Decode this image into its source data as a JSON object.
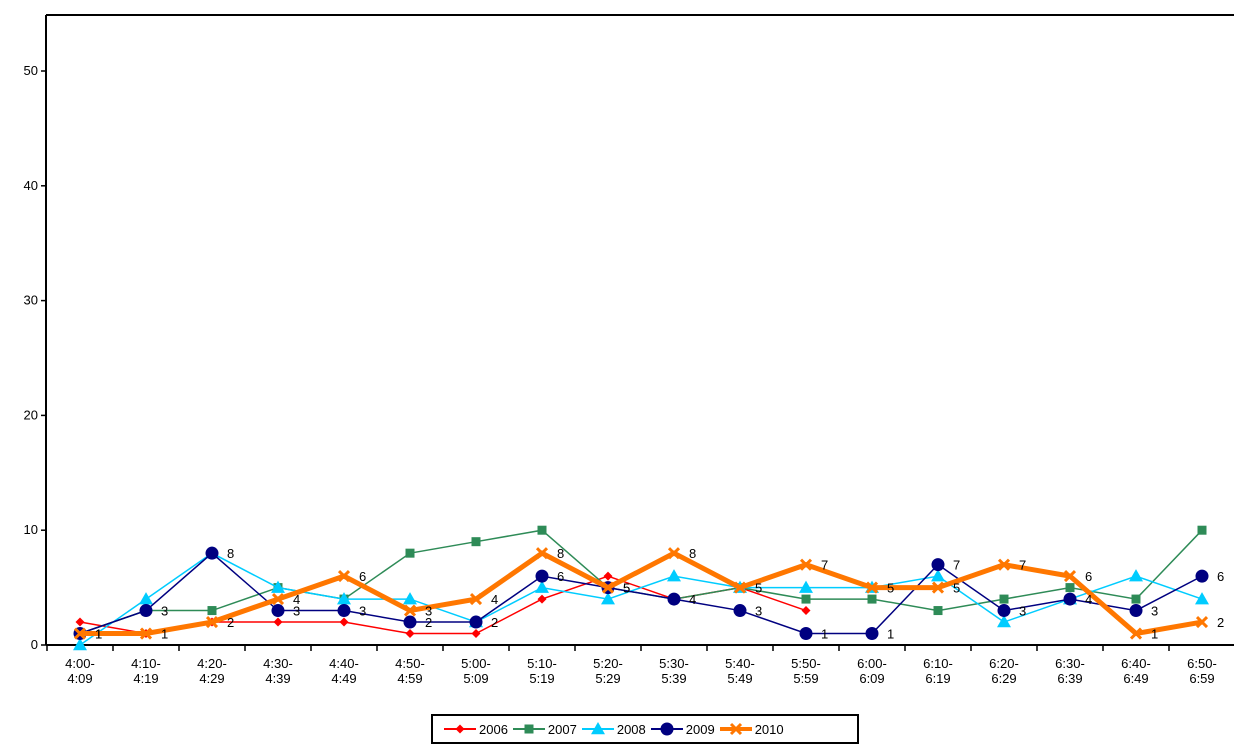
{
  "chart_data": {
    "type": "line",
    "title": "",
    "xlabel": "",
    "ylabel": "",
    "ylim": [
      0,
      55
    ],
    "yticks": [
      0,
      10,
      20,
      30,
      40,
      50
    ],
    "grid": false,
    "legend_position": "bottom-center",
    "categories": [
      [
        "4:00-",
        "4:09"
      ],
      [
        "4:10-",
        "4:19"
      ],
      [
        "4:20-",
        "4:29"
      ],
      [
        "4:30-",
        "4:39"
      ],
      [
        "4:40-",
        "4:49"
      ],
      [
        "4:50-",
        "4:59"
      ],
      [
        "5:00-",
        "5:09"
      ],
      [
        "5:10-",
        "5:19"
      ],
      [
        "5:20-",
        "5:29"
      ],
      [
        "5:30-",
        "5:39"
      ],
      [
        "5:40-",
        "5:49"
      ],
      [
        "5:50-",
        "5:59"
      ],
      [
        "6:00-",
        "6:09"
      ],
      [
        "6:10-",
        "6:19"
      ],
      [
        "6:20-",
        "6:29"
      ],
      [
        "6:30-",
        "6:39"
      ],
      [
        "6:40-",
        "6:49"
      ],
      [
        "6:50-",
        "6:59"
      ]
    ],
    "series": [
      {
        "name": "2006",
        "color": "#ff0000",
        "marker": "diamond",
        "width": 1.5,
        "values": [
          2,
          1,
          2,
          2,
          2,
          1,
          1,
          4,
          6,
          4,
          5,
          3,
          null,
          null,
          null,
          null,
          null,
          null
        ],
        "labels": false
      },
      {
        "name": "2007",
        "color": "#2e8b57",
        "marker": "square",
        "width": 1.5,
        "values": [
          1,
          3,
          3,
          5,
          4,
          8,
          9,
          10,
          5,
          4,
          5,
          4,
          4,
          3,
          4,
          5,
          4,
          10
        ],
        "labels": false
      },
      {
        "name": "2008",
        "color": "#00ccff",
        "marker": "triangle",
        "width": 1.5,
        "values": [
          0,
          4,
          8,
          5,
          4,
          4,
          2,
          5,
          4,
          6,
          5,
          5,
          5,
          6,
          2,
          4,
          6,
          4
        ],
        "labels": false
      },
      {
        "name": "2009",
        "color": "#000080",
        "marker": "circle",
        "width": 1.5,
        "values": [
          1,
          3,
          8,
          3,
          3,
          2,
          2,
          6,
          5,
          4,
          3,
          1,
          1,
          7,
          3,
          4,
          3,
          6
        ],
        "labels": true
      },
      {
        "name": "2010",
        "color": "#ff7700",
        "marker": "x",
        "width": 5,
        "values": [
          1,
          1,
          2,
          4,
          6,
          3,
          4,
          8,
          5,
          8,
          5,
          7,
          5,
          5,
          7,
          6,
          1,
          2
        ],
        "labels": true
      }
    ]
  }
}
